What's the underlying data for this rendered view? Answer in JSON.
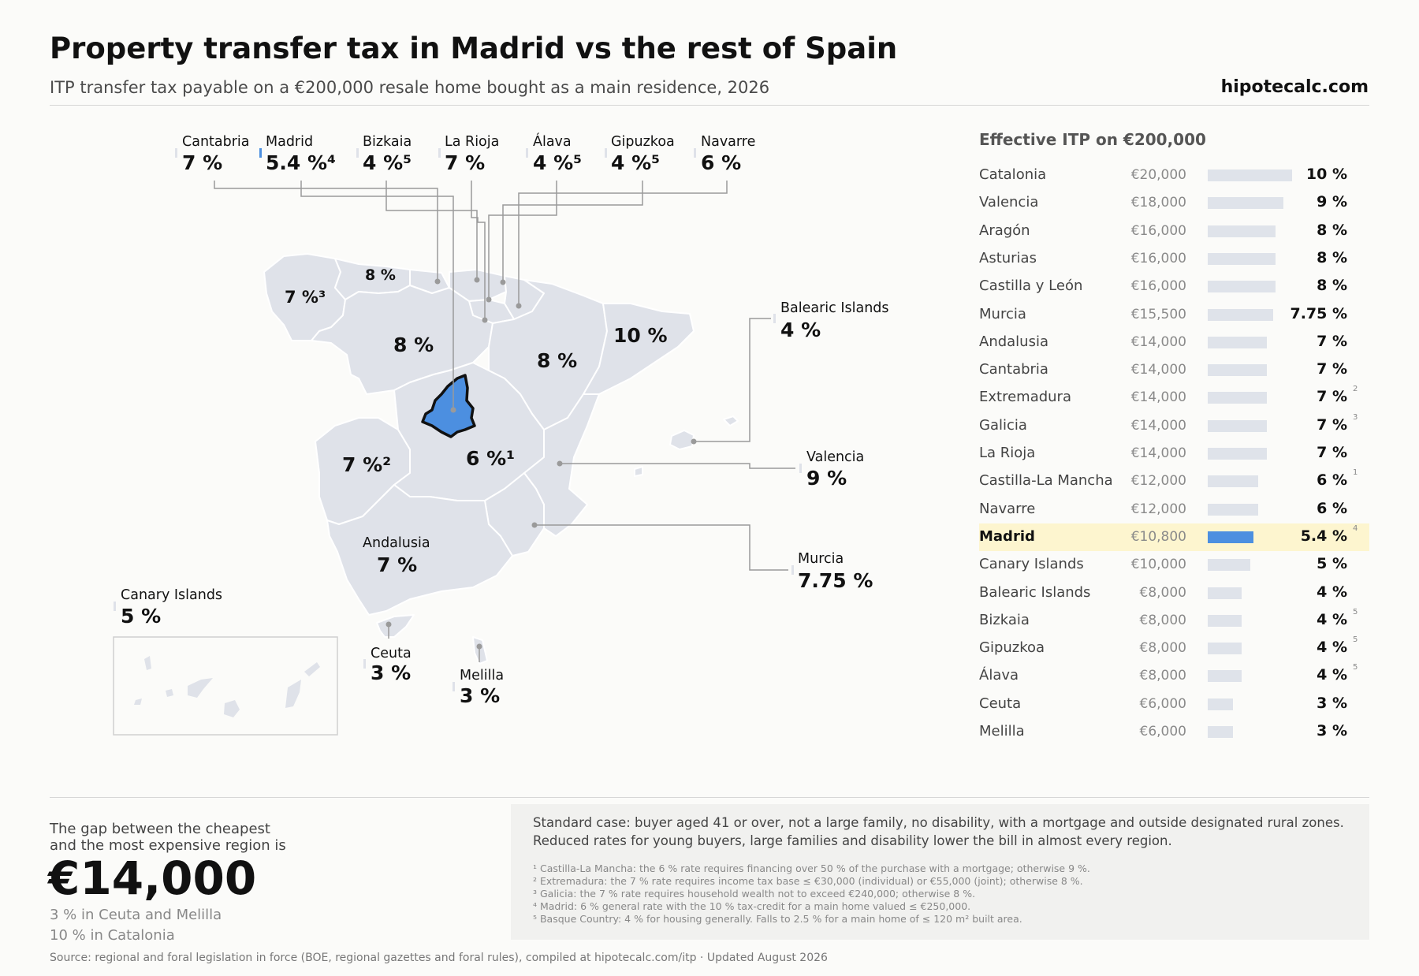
{
  "title": "Property transfer tax in Madrid vs the rest of Spain",
  "subtitle": "ITP transfer tax payable on a €200,000 resale home bought as a main residence, 2026",
  "brand": "hipotecalc.com",
  "colors": {
    "highlight": "#4c8fe0",
    "bar": "#dfe3ea",
    "region": "#dfe2e9",
    "row_highlight": "#fdf5cf"
  },
  "map": {
    "callouts_top": [
      {
        "name": "Cantabria",
        "rate": "7 %"
      },
      {
        "name": "Madrid",
        "rate": "5.4 %⁴"
      },
      {
        "name": "Bizkaia",
        "rate": "4 %⁵"
      },
      {
        "name": "La Rioja",
        "rate": "7 %"
      },
      {
        "name": "Álava",
        "rate": "4 %⁵"
      },
      {
        "name": "Gipuzkoa",
        "rate": "4 %⁵"
      },
      {
        "name": "Navarre",
        "rate": "6 %"
      }
    ],
    "inline_rates": {
      "asturias": "8 %",
      "galicia": "7 %³",
      "castilla_leon": "8 %",
      "aragon": "8 %",
      "catalonia": "10 %",
      "extremadura": "7 %²",
      "castilla_la_mancha": "6 %¹"
    },
    "andalusia": {
      "name": "Andalusia",
      "rate": "7 %"
    },
    "balearic": {
      "name": "Balearic Islands",
      "rate": "4 %"
    },
    "valencia": {
      "name": "Valencia",
      "rate": "9 %"
    },
    "murcia": {
      "name": "Murcia",
      "rate": "7.75 %"
    },
    "canary": {
      "name": "Canary Islands",
      "rate": "5 %"
    },
    "ceuta": {
      "name": "Ceuta",
      "rate": "3 %"
    },
    "melilla": {
      "name": "Melilla",
      "rate": "3 %"
    }
  },
  "list_title": "Effective ITP on €200,000",
  "chart_data": {
    "type": "bar",
    "title": "Effective ITP on €200,000",
    "categories": [
      "Catalonia",
      "Valencia",
      "Aragón",
      "Asturias",
      "Castilla y León",
      "Murcia",
      "Andalusia",
      "Cantabria",
      "Extremadura",
      "Galicia",
      "La Rioja",
      "Castilla-La Mancha",
      "Navarre",
      "Madrid",
      "Canary Islands",
      "Balearic Islands",
      "Bizkaia",
      "Gipuzkoa",
      "Álava",
      "Ceuta",
      "Melilla"
    ],
    "values": [
      20000,
      18000,
      16000,
      16000,
      16000,
      15500,
      14000,
      14000,
      14000,
      14000,
      14000,
      12000,
      12000,
      10800,
      10000,
      8000,
      8000,
      8000,
      8000,
      6000,
      6000
    ],
    "amount_labels": [
      "€20,000",
      "€18,000",
      "€16,000",
      "€16,000",
      "€16,000",
      "€15,500",
      "€14,000",
      "€14,000",
      "€14,000",
      "€14,000",
      "€14,000",
      "€12,000",
      "€12,000",
      "€10,800",
      "€10,000",
      "€8,000",
      "€8,000",
      "€8,000",
      "€8,000",
      "€6,000",
      "€6,000"
    ],
    "rate_labels": [
      "10 %",
      "9 %",
      "8 %",
      "8 %",
      "8 %",
      "7.75 %",
      "7 %",
      "7 %",
      "7 %",
      "7 %",
      "7 %",
      "6 %",
      "6 %",
      "5.4 %",
      "5 %",
      "4 %",
      "4 %",
      "4 %",
      "4 %",
      "3 %",
      "3 %"
    ],
    "footnote_marks": [
      "",
      "",
      "",
      "",
      "",
      "",
      "",
      "",
      "2",
      "3",
      "",
      "1",
      "",
      "4",
      "",
      "",
      "5",
      "5",
      "5",
      "",
      ""
    ],
    "highlight": "Madrid"
  },
  "gap": {
    "label_line1": "The gap between the cheapest",
    "label_line2": "and the most expensive region is",
    "value": "€14,000",
    "note1": "3 % in Ceuta and Melilla",
    "note2": "10 % in Catalonia"
  },
  "standard_case": "Standard case: buyer aged 41 or over, not a large family, no disability, with a mortgage and outside designated rural zones. Reduced rates for young buyers, large families and disability lower the bill in almost every region.",
  "footnotes": [
    "¹ Castilla-La Mancha: the 6 % rate requires financing over 50 % of the purchase with a mortgage; otherwise 9 %.",
    "² Extremadura: the 7 % rate requires income tax base ≤ €30,000 (individual) or €55,000 (joint); otherwise 8 %.",
    "³ Galicia: the 7 % rate requires household wealth not to exceed €240,000; otherwise 8 %.",
    "⁴ Madrid: 6 % general rate with the 10 % tax-credit for a main home valued ≤ €250,000.",
    "⁵ Basque Country: 4 % for housing generally. Falls to 2.5 % for a main home of ≤ 120 m² built area."
  ],
  "source": "Source: regional and foral legislation in force (BOE, regional gazettes and foral rules), compiled at hipotecalc.com/itp · Updated August 2026"
}
